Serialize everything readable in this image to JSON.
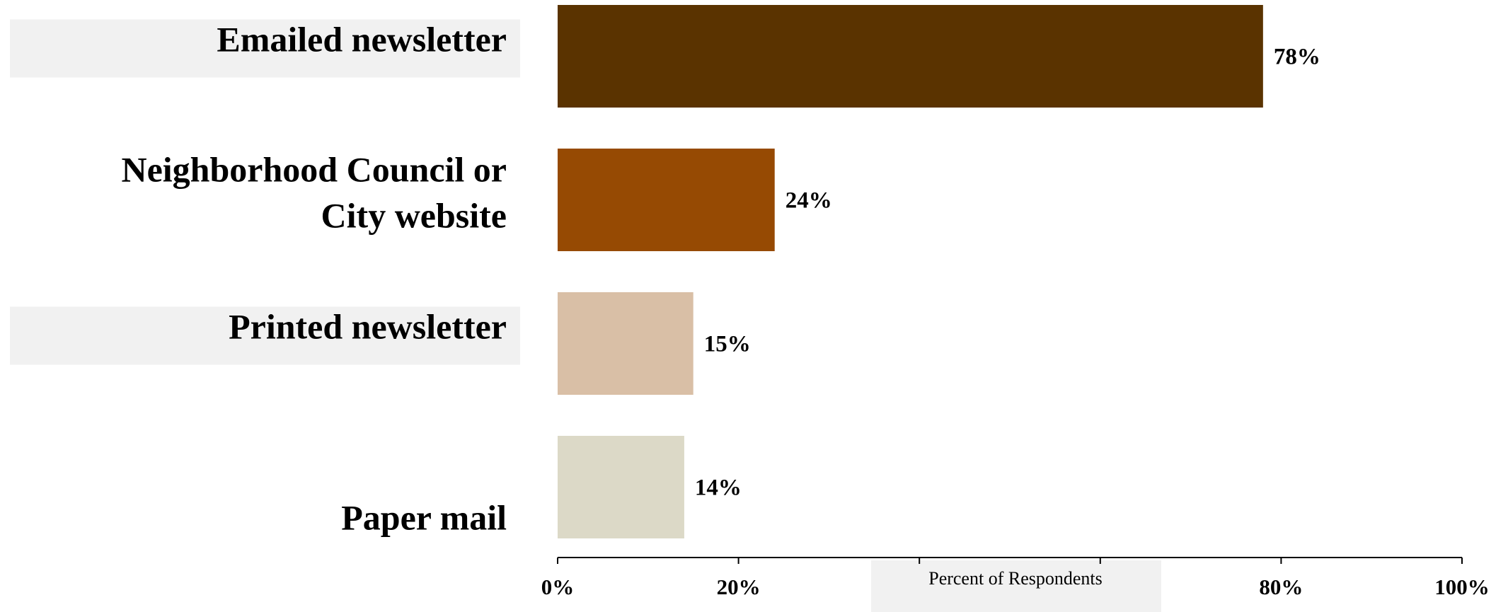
{
  "chart_data": {
    "type": "bar",
    "orientation": "horizontal",
    "categories": [
      "Emailed newsletter",
      "Neighborhood Council or City website",
      "Printed newsletter",
      "Paper mail"
    ],
    "category_lines": [
      [
        "Emailed newsletter"
      ],
      [
        "Neighborhood Council or",
        "City website"
      ],
      [
        "Printed newsletter"
      ],
      [
        "Paper mail"
      ]
    ],
    "values": [
      78,
      24,
      15,
      14
    ],
    "value_labels": [
      "78%",
      "24%",
      "15%",
      "14%"
    ],
    "bar_colors": [
      "#5a3300",
      "#964a03",
      "#d9bfa6",
      "#dcd9c7"
    ],
    "label_highlight": [
      true,
      false,
      true,
      false
    ],
    "highlight_color": "#f1f1f1",
    "xlim": [
      0,
      100
    ],
    "xticks": [
      0,
      20,
      40,
      60,
      80,
      100
    ],
    "xtick_labels": [
      "0%",
      "20%",
      "",
      "",
      "80%",
      "100%"
    ],
    "xlabel": "Percent of Respondents",
    "xlabel_highlight": true,
    "title": "",
    "legend": "none",
    "grid": false
  }
}
